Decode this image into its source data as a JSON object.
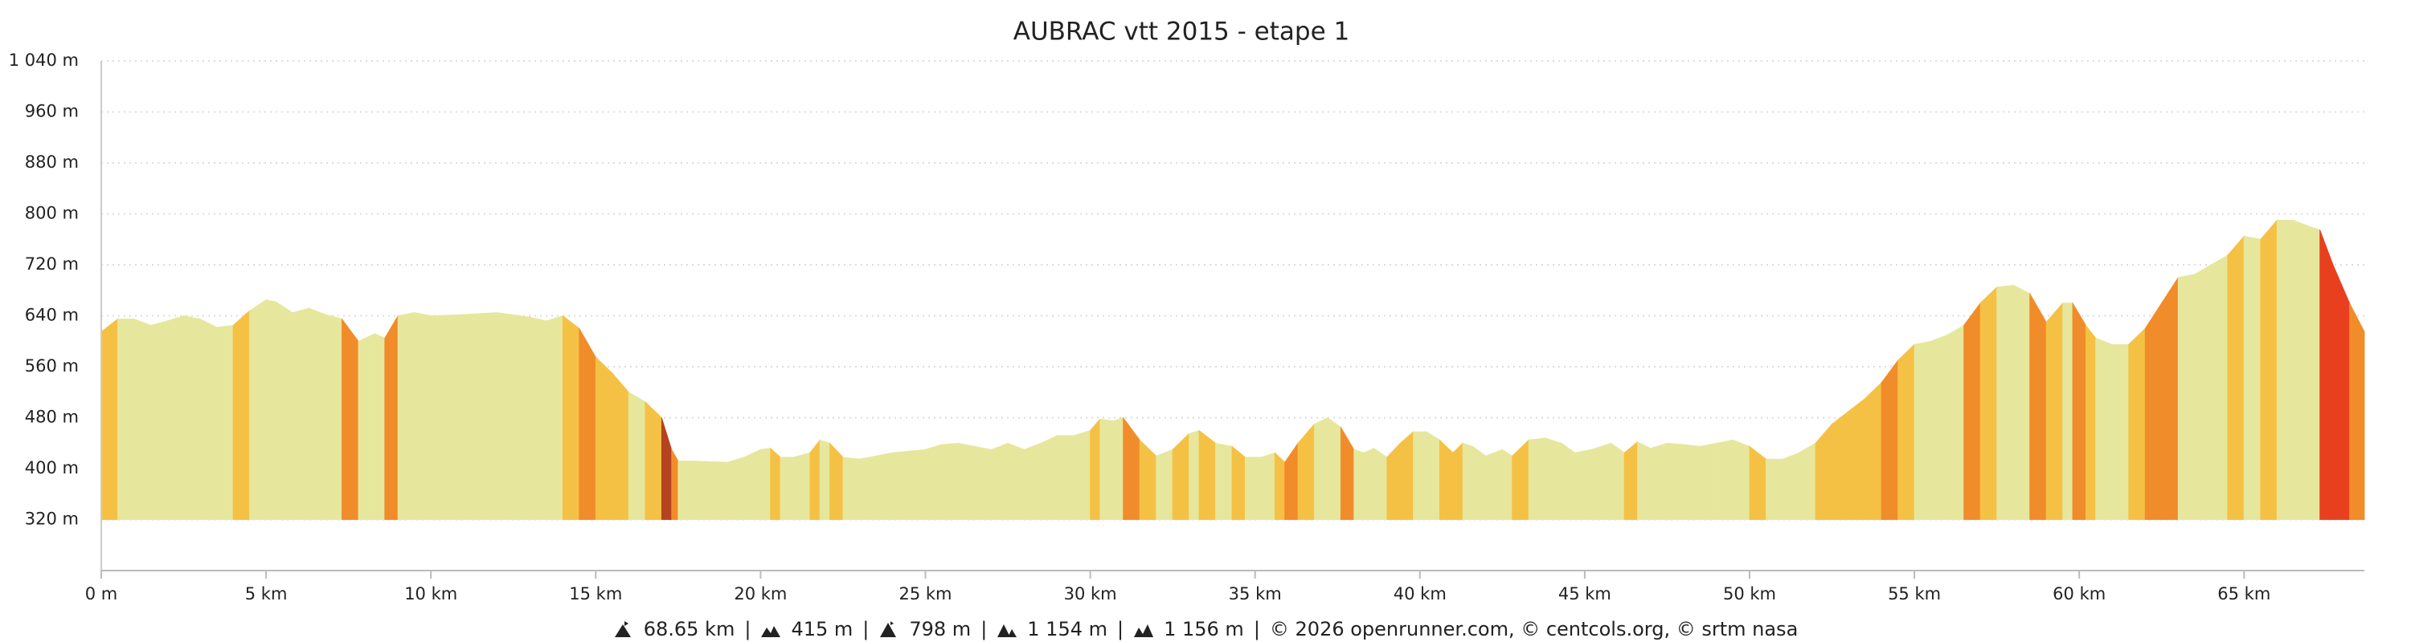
{
  "chart_data": {
    "type": "area",
    "title": "AUBRAC vtt 2015 - etape 1",
    "x": [
      0,
      0.5,
      1,
      1.5,
      2,
      2.5,
      3,
      3.5,
      4,
      4.5,
      5,
      5.3,
      5.8,
      6.3,
      6.8,
      7.3,
      7.8,
      8.3,
      8.6,
      9,
      9.5,
      10,
      11,
      12,
      13,
      13.5,
      14,
      14.5,
      15,
      15.5,
      16,
      16.5,
      17,
      17.3,
      17.5,
      18,
      19,
      19.5,
      20,
      20.3,
      20.6,
      21,
      21.5,
      21.8,
      22.1,
      22.5,
      23,
      23.5,
      24,
      25,
      25.5,
      26,
      26.5,
      27,
      27.5,
      28,
      28.5,
      29,
      29.5,
      30,
      30.3,
      30.7,
      31,
      31.5,
      32,
      32.5,
      33,
      33.3,
      33.8,
      34.3,
      34.7,
      35.2,
      35.6,
      35.9,
      36.3,
      36.8,
      37.2,
      37.6,
      38,
      38.3,
      38.6,
      39,
      39.4,
      39.8,
      40.2,
      40.6,
      41,
      41.3,
      41.6,
      42,
      42.5,
      42.8,
      43.3,
      43.8,
      44.3,
      44.7,
      45.2,
      45.8,
      46.2,
      46.6,
      47,
      47.5,
      48,
      48.5,
      49,
      49.5,
      50,
      50.5,
      51,
      51.5,
      52,
      52.5,
      53,
      53.5,
      54,
      54.5,
      55,
      55.5,
      56,
      56.5,
      57,
      57.5,
      58,
      58.5,
      59,
      59.5,
      59.8,
      60.2,
      60.5,
      61,
      61.5,
      62,
      62.5,
      63,
      63.5,
      64,
      64.5,
      65,
      65.5,
      66,
      66.5,
      67,
      67.3,
      67.7,
      68.2,
      68.65
    ],
    "y": [
      615,
      635,
      635,
      625,
      632,
      640,
      635,
      622,
      625,
      648,
      665,
      662,
      645,
      652,
      642,
      635,
      600,
      612,
      605,
      640,
      645,
      640,
      642,
      645,
      638,
      632,
      640,
      620,
      575,
      550,
      520,
      505,
      480,
      430,
      412,
      412,
      410,
      418,
      430,
      432,
      418,
      418,
      425,
      445,
      440,
      418,
      415,
      420,
      425,
      430,
      438,
      440,
      435,
      430,
      440,
      430,
      440,
      452,
      452,
      460,
      478,
      475,
      480,
      445,
      420,
      430,
      455,
      460,
      440,
      435,
      418,
      418,
      425,
      410,
      440,
      470,
      480,
      465,
      430,
      425,
      432,
      418,
      440,
      458,
      458,
      445,
      425,
      440,
      435,
      420,
      430,
      420,
      445,
      448,
      440,
      425,
      430,
      440,
      425,
      442,
      432,
      440,
      438,
      435,
      440,
      445,
      435,
      415,
      415,
      425,
      440,
      470,
      490,
      510,
      535,
      570,
      595,
      600,
      610,
      625,
      660,
      685,
      688,
      675,
      630,
      660,
      660,
      625,
      605,
      595,
      595,
      620,
      660,
      700,
      705,
      720,
      735,
      765,
      760,
      790,
      790,
      780,
      775,
      720,
      660,
      615
    ],
    "xlim": [
      0,
      68.65
    ],
    "xticks": [
      {
        "value": 0,
        "label": "0 m"
      },
      {
        "value": 5,
        "label": "5 km"
      },
      {
        "value": 10,
        "label": "10 km"
      },
      {
        "value": 15,
        "label": "15 km"
      },
      {
        "value": 20,
        "label": "20 km"
      },
      {
        "value": 25,
        "label": "25 km"
      },
      {
        "value": 30,
        "label": "30 km"
      },
      {
        "value": 35,
        "label": "35 km"
      },
      {
        "value": 40,
        "label": "40 km"
      },
      {
        "value": 45,
        "label": "45 km"
      },
      {
        "value": 50,
        "label": "50 km"
      },
      {
        "value": 55,
        "label": "55 km"
      },
      {
        "value": 60,
        "label": "60 km"
      },
      {
        "value": 65,
        "label": "65 km"
      }
    ],
    "ylim": [
      240,
      1040
    ],
    "yticks": [
      {
        "value": 320,
        "label": "320 m"
      },
      {
        "value": 400,
        "label": "400 m"
      },
      {
        "value": 480,
        "label": "480 m"
      },
      {
        "value": 560,
        "label": "560 m"
      },
      {
        "value": 640,
        "label": "640 m"
      },
      {
        "value": 720,
        "label": "720 m"
      },
      {
        "value": 800,
        "label": "800 m"
      },
      {
        "value": 880,
        "label": "880 m"
      },
      {
        "value": 960,
        "label": "960 m"
      },
      {
        "value": 1040,
        "label": "1 040 m"
      }
    ],
    "grid": true
  },
  "footer": {
    "stats": [
      "68.65 km",
      "415 m",
      "798 m",
      "1 154 m",
      "1 156 m"
    ],
    "separator": "|",
    "credit": "© 2026 openrunner.com, © centcols.org, © srtm nasa"
  }
}
